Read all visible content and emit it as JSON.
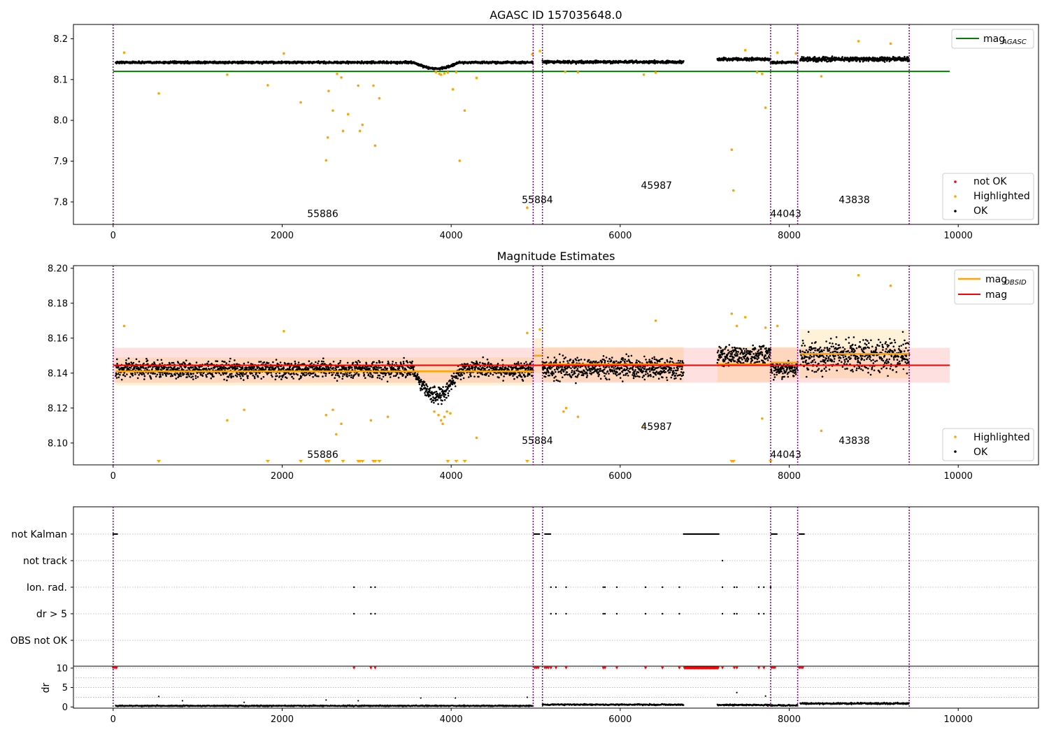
{
  "chart_data": [
    {
      "type": "scatter",
      "title": "AGASC ID 157035648.0",
      "xlabel": "",
      "ylabel": "",
      "xlim": [
        -470,
        10950
      ],
      "ylim": [
        7.745,
        8.235
      ],
      "xticks": [
        0,
        2000,
        4000,
        6000,
        8000,
        10000
      ],
      "yticks": [
        7.8,
        7.9,
        8.0,
        8.1,
        8.2
      ],
      "ytick_labels": [
        "7.8",
        "7.9",
        "8.0",
        "8.1",
        "8.2"
      ],
      "legend_position": "lower-right",
      "legend_top_position": "upper-right",
      "series": [
        {
          "name": "not OK",
          "color": "#ff0000"
        },
        {
          "name": "Highlighted",
          "color": "#ffa500"
        },
        {
          "name": "OK",
          "color": "#000000"
        }
      ],
      "reference_lines": [
        {
          "name": "mag",
          "subscript": "AGASC",
          "value": 8.12,
          "x_range": [
            0,
            9900
          ],
          "color": "#008000"
        }
      ],
      "ok_segments": [
        {
          "x_range": [
            30,
            4970
          ],
          "base": 8.142,
          "spread": 0.008,
          "dip_range": [
            3550,
            4100
          ],
          "dip_depth": 0.015
        },
        {
          "x_range": [
            5080,
            6750
          ],
          "base": 8.143,
          "spread": 0.01
        },
        {
          "x_range": [
            7150,
            7780
          ],
          "base": 8.15,
          "spread": 0.01
        },
        {
          "x_range": [
            7780,
            8100
          ],
          "base": 8.142,
          "spread": 0.008
        },
        {
          "x_range": [
            8130,
            9420
          ],
          "base": 8.15,
          "spread": 0.016
        }
      ],
      "highlighted_points": {
        "x": [
          130,
          540,
          1350,
          1830,
          2020,
          2220,
          2520,
          2540,
          2550,
          2600,
          2650,
          2700,
          2720,
          2780,
          2900,
          2920,
          2950,
          3080,
          3100,
          3150,
          3820,
          3860,
          3880,
          3920,
          3960,
          4020,
          4060,
          4100,
          4160,
          4300,
          4900,
          4960,
          5050,
          5350,
          5500,
          6280,
          6420,
          7320,
          7340,
          7480,
          7620,
          7680,
          7720,
          7860,
          8080,
          8380,
          8820,
          9200
        ],
        "y": [
          8.166,
          8.066,
          8.112,
          8.086,
          8.164,
          8.044,
          7.902,
          7.958,
          8.072,
          8.024,
          8.114,
          8.105,
          7.974,
          8.015,
          8.085,
          7.974,
          7.989,
          8.085,
          7.938,
          8.054,
          8.118,
          8.114,
          8.112,
          8.115,
          8.117,
          8.076,
          8.118,
          7.901,
          8.024,
          8.104,
          7.786,
          8.162,
          8.17,
          8.119,
          8.118,
          8.112,
          8.117,
          7.928,
          7.828,
          8.172,
          8.118,
          8.114,
          8.031,
          8.166,
          8.164,
          8.108,
          8.194,
          8.188
        ]
      },
      "annotations": [
        {
          "text": "55886",
          "x": 2480,
          "y": 7.763
        },
        {
          "text": "55884",
          "x": 5020,
          "y": 7.797
        },
        {
          "text": "45987",
          "x": 6430,
          "y": 7.832
        },
        {
          "text": "44043",
          "x": 7960,
          "y": 7.763
        },
        {
          "text": "43838",
          "x": 8770,
          "y": 7.797
        }
      ],
      "vlines": [
        0,
        4970,
        5080,
        7780,
        8100,
        9420
      ]
    },
    {
      "type": "scatter",
      "title": "Magnitude Estimates",
      "xlabel": "",
      "ylabel": "",
      "xlim": [
        -470,
        10950
      ],
      "ylim": [
        8.0875,
        8.2015
      ],
      "xticks": [
        0,
        2000,
        4000,
        6000,
        8000,
        10000
      ],
      "yticks": [
        8.1,
        8.12,
        8.14,
        8.16,
        8.18,
        8.2
      ],
      "ytick_labels": [
        "8.10",
        "8.12",
        "8.14",
        "8.16",
        "8.18",
        "8.20"
      ],
      "legend_position": "lower-right",
      "legend_top_position": "upper-right",
      "series": [
        {
          "name": "Highlighted",
          "color": "#ffa500"
        },
        {
          "name": "OK",
          "color": "#000000"
        }
      ],
      "reference_lines": [
        {
          "name": "mag",
          "subscript": "OBSID",
          "color": "#ffa500"
        },
        {
          "name": "mag",
          "value": 8.1445,
          "band": [
            8.1345,
            8.1545
          ],
          "x_range": [
            0,
            9900
          ],
          "color": "#ff0000"
        }
      ],
      "obsid_mags": [
        {
          "x_range": [
            30,
            4970
          ],
          "value": 8.141,
          "band": [
            8.133,
            8.149
          ]
        },
        {
          "x_range": [
            4970,
            5080
          ],
          "value": 8.15,
          "band": [
            8.14,
            8.16
          ]
        },
        {
          "x_range": [
            5080,
            6750
          ],
          "value": 8.145,
          "band": [
            8.135,
            8.155
          ]
        },
        {
          "x_range": [
            7150,
            7780
          ],
          "value": 8.145,
          "band": [
            8.135,
            8.155
          ]
        },
        {
          "x_range": [
            7780,
            8100
          ],
          "value": 8.146,
          "band": [
            8.137,
            8.155
          ]
        },
        {
          "x_range": [
            8130,
            9420
          ],
          "value": 8.151,
          "band": [
            8.137,
            8.165
          ]
        }
      ],
      "ok_segments": [
        {
          "x_range": [
            30,
            4970
          ],
          "base": 8.142,
          "spread": 0.008,
          "dip_range": [
            3550,
            4100
          ],
          "dip_depth": 0.015
        },
        {
          "x_range": [
            5080,
            6750
          ],
          "base": 8.143,
          "spread": 0.01
        },
        {
          "x_range": [
            7150,
            7780
          ],
          "base": 8.15,
          "spread": 0.01
        },
        {
          "x_range": [
            7780,
            8100
          ],
          "base": 8.142,
          "spread": 0.008
        },
        {
          "x_range": [
            8130,
            9420
          ],
          "base": 8.15,
          "spread": 0.016
        }
      ],
      "highlighted_points": {
        "x": [
          130,
          1350,
          1550,
          2020,
          2520,
          2600,
          2640,
          2700,
          3050,
          3250,
          3800,
          3850,
          3880,
          3900,
          3920,
          3950,
          3990,
          4300,
          4900,
          5050,
          5330,
          5360,
          5500,
          6280,
          6420,
          7320,
          7380,
          7480,
          7680,
          7720,
          7860,
          8380,
          8820,
          9200
        ],
        "y": [
          8.167,
          8.113,
          8.119,
          8.164,
          8.116,
          8.119,
          8.105,
          8.111,
          8.113,
          8.115,
          8.118,
          8.116,
          8.113,
          8.111,
          8.115,
          8.118,
          8.117,
          8.103,
          8.163,
          8.165,
          8.118,
          8.12,
          8.115,
          8.11,
          8.17,
          8.174,
          8.167,
          8.172,
          8.114,
          8.166,
          8.167,
          8.107,
          8.196,
          8.19
        ]
      },
      "out_of_range_markers_x": [
        540,
        1830,
        2220,
        2520,
        2550,
        2720,
        2900,
        2920,
        2950,
        3080,
        3100,
        3150,
        3960,
        4060,
        4160,
        4900,
        7320,
        7340,
        7780
      ],
      "annotations": [
        {
          "text": "55886",
          "x": 2480,
          "y": 8.0915
        },
        {
          "text": "55884",
          "x": 5020,
          "y": 8.0995
        },
        {
          "text": "45987",
          "x": 6430,
          "y": 8.1075
        },
        {
          "text": "44043",
          "x": 7960,
          "y": 8.0915
        },
        {
          "text": "43838",
          "x": 8770,
          "y": 8.0995
        }
      ],
      "vlines": [
        0,
        4970,
        5080,
        7780,
        8100,
        9420
      ]
    },
    {
      "type": "scatter",
      "title": "",
      "xlabel": "",
      "ylabel": "",
      "xlim": [
        -470,
        10950
      ],
      "xticks": [
        0,
        2000,
        4000,
        6000,
        8000,
        10000
      ],
      "categories": [
        "not Kalman",
        "not track",
        "Ion. rad.",
        "dr > 5",
        "OBS not OK"
      ],
      "flag_points": {
        "not Kalman": {
          "x_ranges": [
            [
              0,
              50
            ],
            [
              4980,
              5050
            ],
            [
              5110,
              5180
            ],
            [
              6750,
              7170
            ],
            [
              7790,
              7860
            ],
            [
              8120,
              8180
            ]
          ]
        },
        "not track": {
          "x": [
            7210
          ]
        },
        "Ion. rad.": {
          "x": [
            2850,
            3050,
            3100,
            5180,
            5240,
            5360,
            5800,
            5820,
            5960,
            6300,
            6500,
            6700,
            7210,
            7350,
            7380,
            7640,
            7700,
            7780
          ]
        },
        "dr > 5": {
          "x": [
            2850,
            3050,
            3100,
            5180,
            5240,
            5360,
            5800,
            5820,
            5960,
            6300,
            6500,
            6700,
            7210,
            7350,
            7380,
            7640,
            7700,
            7780
          ]
        },
        "OBS not OK": {
          "x": []
        }
      },
      "vlines": [
        0,
        4970,
        5080,
        7780,
        8100,
        9420
      ]
    },
    {
      "type": "scatter",
      "title": "",
      "xlabel": "",
      "ylabel": "dr",
      "xlim": [
        -470,
        10950
      ],
      "ylim": [
        -0.3,
        10.5
      ],
      "xticks": [
        0,
        2000,
        4000,
        6000,
        8000,
        10000
      ],
      "yticks": [
        0,
        5,
        10
      ],
      "ytick_labels": [
        "0",
        "5",
        "10"
      ],
      "xtick_labels": [
        "0",
        "2000",
        "4000",
        "6000",
        "8000",
        "10000"
      ],
      "capped_points_x": [
        0,
        20,
        40,
        2850,
        3050,
        3100,
        4990,
        5010,
        5030,
        5110,
        5130,
        5150,
        5180,
        5240,
        5360,
        5800,
        5820,
        5960,
        6300,
        6500,
        6700,
        7210,
        7350,
        7380,
        7640,
        7700,
        7790,
        7810,
        7830,
        8120,
        8140,
        8160
      ],
      "capped_ranges": [
        [
          6760,
          7160
        ]
      ],
      "capped_value": 10,
      "ok_segments": [
        {
          "x_range": [
            30,
            4970
          ],
          "base": 0.3,
          "spread": 0.25
        },
        {
          "x_range": [
            5080,
            6750
          ],
          "base": 0.6,
          "spread": 0.3
        },
        {
          "x_range": [
            7150,
            7780
          ],
          "base": 0.5,
          "spread": 0.3
        },
        {
          "x_range": [
            7780,
            8100
          ],
          "base": 0.4,
          "spread": 0.3
        },
        {
          "x_range": [
            8130,
            9420
          ],
          "base": 0.9,
          "spread": 0.35
        }
      ],
      "outlier_points": {
        "x": [
          540,
          820,
          1550,
          2520,
          2900,
          3640,
          4050,
          4900,
          7380,
          7720
        ],
        "y": [
          2.7,
          1.6,
          1.2,
          1.8,
          1.6,
          2.3,
          2.3,
          2.5,
          3.7,
          2.8
        ]
      },
      "vlines": [
        0,
        4970,
        5080,
        7780,
        8100,
        9420
      ]
    }
  ]
}
